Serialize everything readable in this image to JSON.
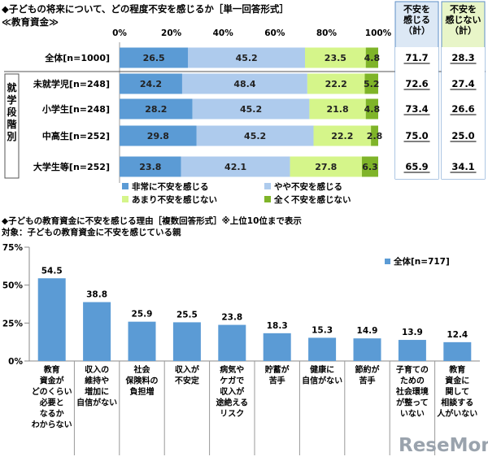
{
  "chart_data": [
    {
      "type": "bar",
      "orientation": "horizontal",
      "stacked": true,
      "title": "◆子どもの将来について、どの程度不安を感じるか［単一回答形式］",
      "subtitle": "≪教育資金≫",
      "group_label": "就学段階別",
      "xlim": [
        0,
        100
      ],
      "x_ticks": [
        "0%",
        "20%",
        "40%",
        "60%",
        "80%",
        "100%"
      ],
      "categories": [
        "全体[n=1000]",
        "未就学児[n=248]",
        "小学生[n=248]",
        "中高生[n=252]",
        "大学生等[n=252]"
      ],
      "series": [
        {
          "name": "非常に不安を感じる",
          "color": "#5b9bd5",
          "values": [
            26.5,
            24.2,
            28.2,
            29.8,
            23.8
          ]
        },
        {
          "name": "やや不安を感じる",
          "color": "#aecbed",
          "values": [
            45.2,
            48.4,
            45.2,
            45.2,
            42.1
          ]
        },
        {
          "name": "あまり不安を感じない",
          "color": "#d5f58a",
          "values": [
            23.5,
            22.2,
            21.8,
            22.2,
            27.8
          ]
        },
        {
          "name": "全く不安を感じない",
          "color": "#7fb429",
          "values": [
            4.8,
            5.2,
            4.8,
            2.8,
            6.3
          ]
        }
      ],
      "summary_columns": [
        {
          "header": "不安を\n感じる\n（計）",
          "values": [
            "71.7",
            "72.6",
            "73.4",
            "75.0",
            "65.9"
          ],
          "color": "#dce8f5"
        },
        {
          "header": "不安を\n感じない\n（計）",
          "values": [
            "28.3",
            "27.4",
            "26.6",
            "25.0",
            "34.1"
          ],
          "color": "#e8f5c8"
        }
      ]
    },
    {
      "type": "bar",
      "title": "◆子どもの教育資金に不安を感じる理由［複数回答形式］※上位10位まで表示",
      "subtitle": "対象：子どもの教育資金に不安を感じている親",
      "ylim": [
        0,
        75
      ],
      "y_ticks": [
        "0%",
        "25%",
        "50%",
        "75%"
      ],
      "series": [
        {
          "name": "全体[n=717]",
          "color": "#5b9bd5",
          "values": [
            54.5,
            38.8,
            25.9,
            25.5,
            23.8,
            18.3,
            15.3,
            14.9,
            13.9,
            12.4
          ]
        }
      ],
      "value_labels": [
        "54.5",
        "38.8",
        "25.9",
        "25.5",
        "23.8",
        "18.3",
        "15.3",
        "14.9",
        "13.9",
        "12.4"
      ],
      "categories": [
        "教育\n資金が\nどのくらい\n必要と\nなるか\nわからない",
        "収入の\n維持や\n増加に\n自信がない",
        "社会\n保険料の\n負担増",
        "収入が\n不安定",
        "病気や\nケガで\n収入が\n途絶える\nリスク",
        "貯蓄が\n苦手",
        "健康に\n自信がない",
        "節約が\n苦手",
        "子育ての\nための\n社会環境\nが整って\nいない",
        "教育\n資金に\n関して\n相談する\n人がいない"
      ]
    }
  ],
  "watermark": "ReseMom"
}
